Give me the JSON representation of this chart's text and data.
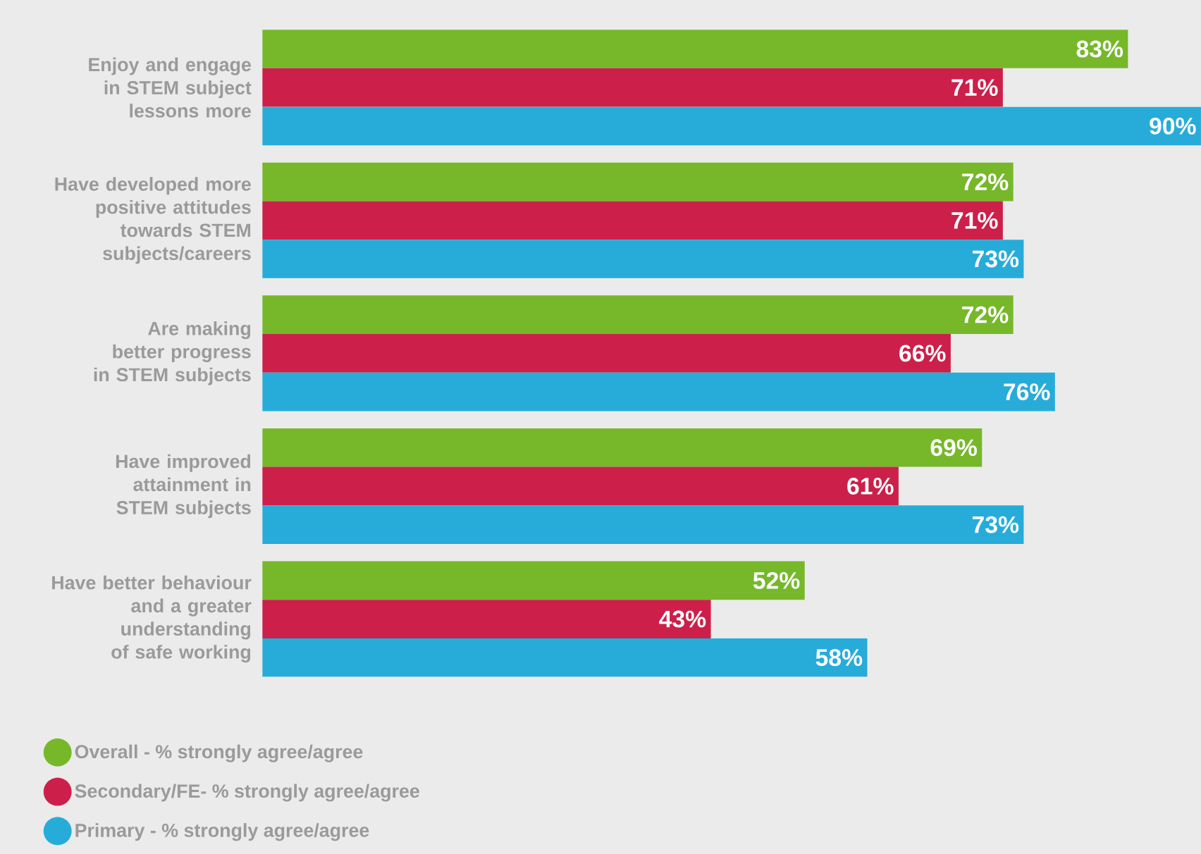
{
  "chart_data": {
    "type": "bar",
    "orientation": "horizontal",
    "categories": [
      "Enjoy and engage in STEM subject lessons more",
      "Have developed more positive attitudes towards STEM subjects/careers",
      "Are making better progress in STEM subjects",
      "Have improved attainment in STEM subjects",
      "Have better behaviour and a greater understanding of safe working"
    ],
    "series": [
      {
        "name": "Overall - % strongly agree/agree",
        "color": "#76b82a",
        "values": [
          83,
          72,
          72,
          69,
          52
        ],
        "value_labels": [
          "83%",
          "72%",
          "72%",
          "69%",
          "52%"
        ]
      },
      {
        "name": "Secondary/FE- % strongly agree/agree",
        "color": "#cc1f4a",
        "values": [
          71,
          71,
          66,
          61,
          43
        ],
        "value_labels": [
          "71%",
          "71%",
          "66%",
          "61%",
          "43%"
        ]
      },
      {
        "name": "Primary - % strongly agree/agree",
        "color": "#27acd9",
        "values": [
          90,
          73,
          76,
          73,
          58
        ],
        "value_labels": [
          "90%",
          "73%",
          "76%",
          "73%",
          "58%"
        ]
      }
    ],
    "legend": "bottom left"
  }
}
